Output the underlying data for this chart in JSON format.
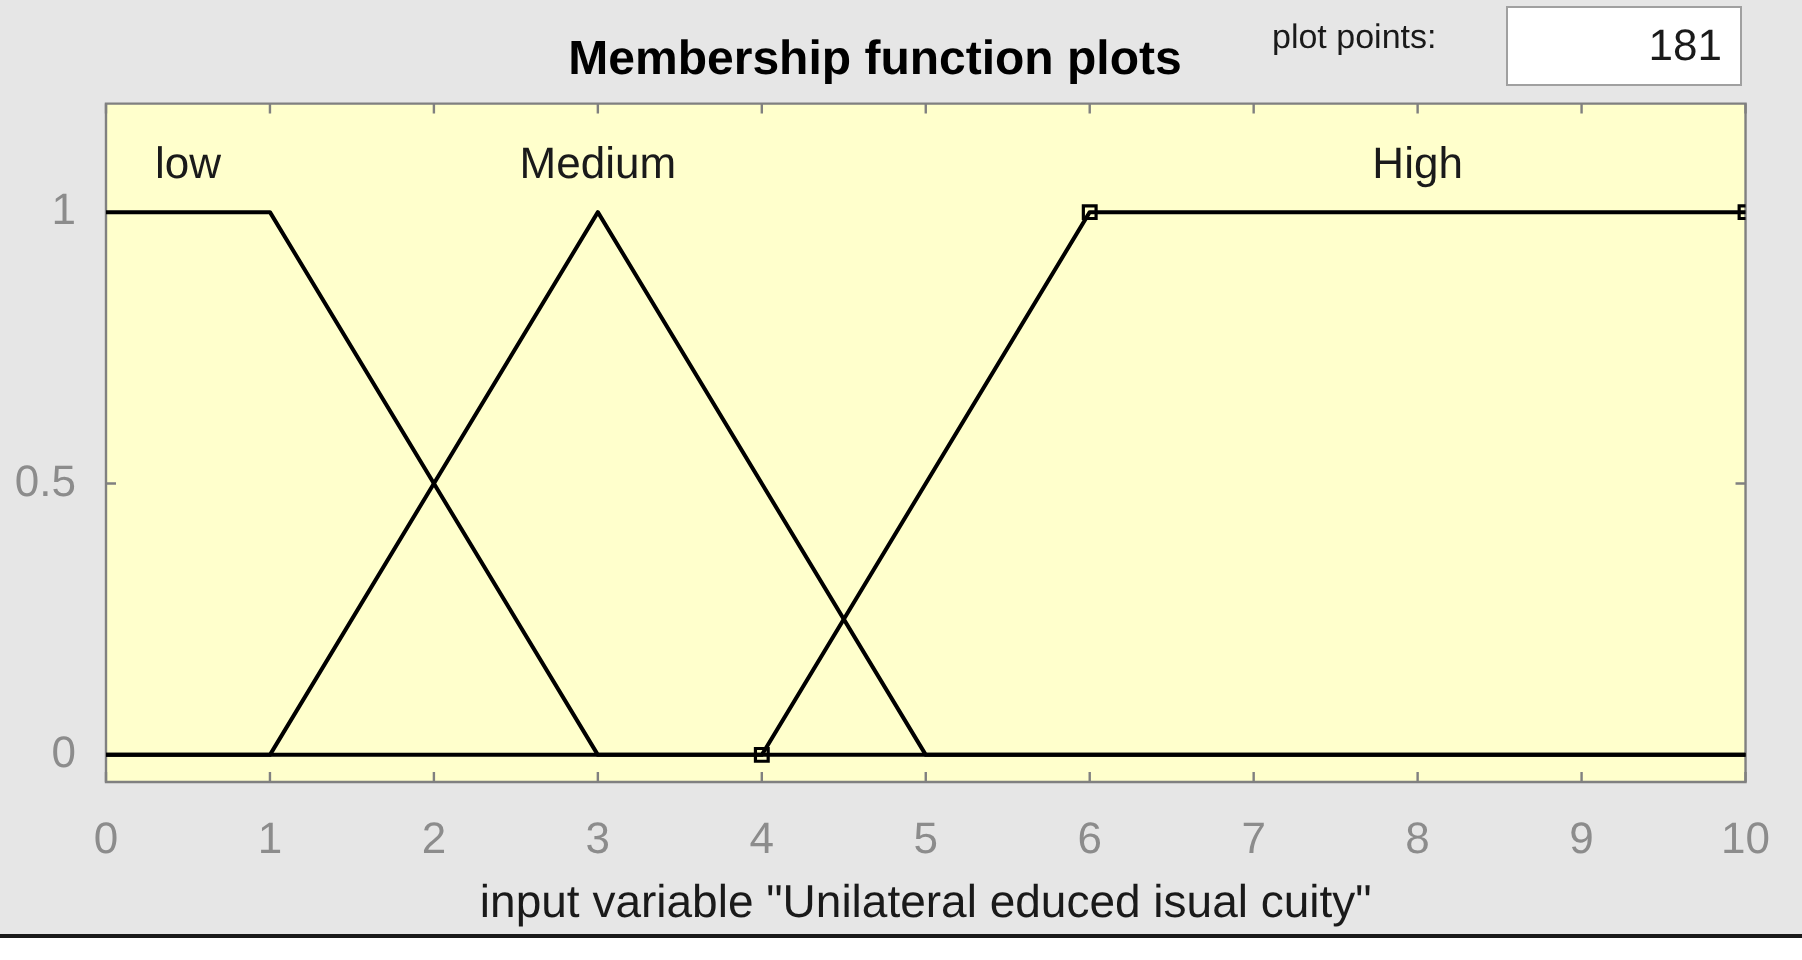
{
  "chart_data": {
    "type": "line",
    "title": "Membership function plots",
    "xlabel": "input variable \"Unilateral educed isual cuity\"",
    "annotations": [
      "plot points:",
      "181"
    ],
    "xlim": [
      0,
      10
    ],
    "xticks": [
      0,
      1,
      2,
      3,
      4,
      5,
      6,
      7,
      8,
      9,
      10
    ],
    "ylim": [
      -0.05,
      1.2
    ],
    "yticks": [
      0,
      0.5,
      1
    ],
    "series": [
      {
        "name": "low",
        "color": "#000000",
        "x": [
          0,
          1,
          3,
          10
        ],
        "values": [
          1,
          1,
          0,
          0
        ]
      },
      {
        "name": "Medium",
        "color": "#000000",
        "x": [
          0,
          1,
          3,
          5,
          10
        ],
        "values": [
          0,
          0,
          1,
          0,
          0
        ]
      },
      {
        "name": "High",
        "color": "#000000",
        "x": [
          0,
          4,
          6,
          10
        ],
        "values": [
          0,
          0,
          1,
          1
        ]
      },
      {
        "type": "scatter",
        "marker": "square",
        "color": "#000000",
        "x": [
          4,
          6,
          10
        ],
        "values": [
          0,
          1,
          1
        ]
      }
    ]
  }
}
